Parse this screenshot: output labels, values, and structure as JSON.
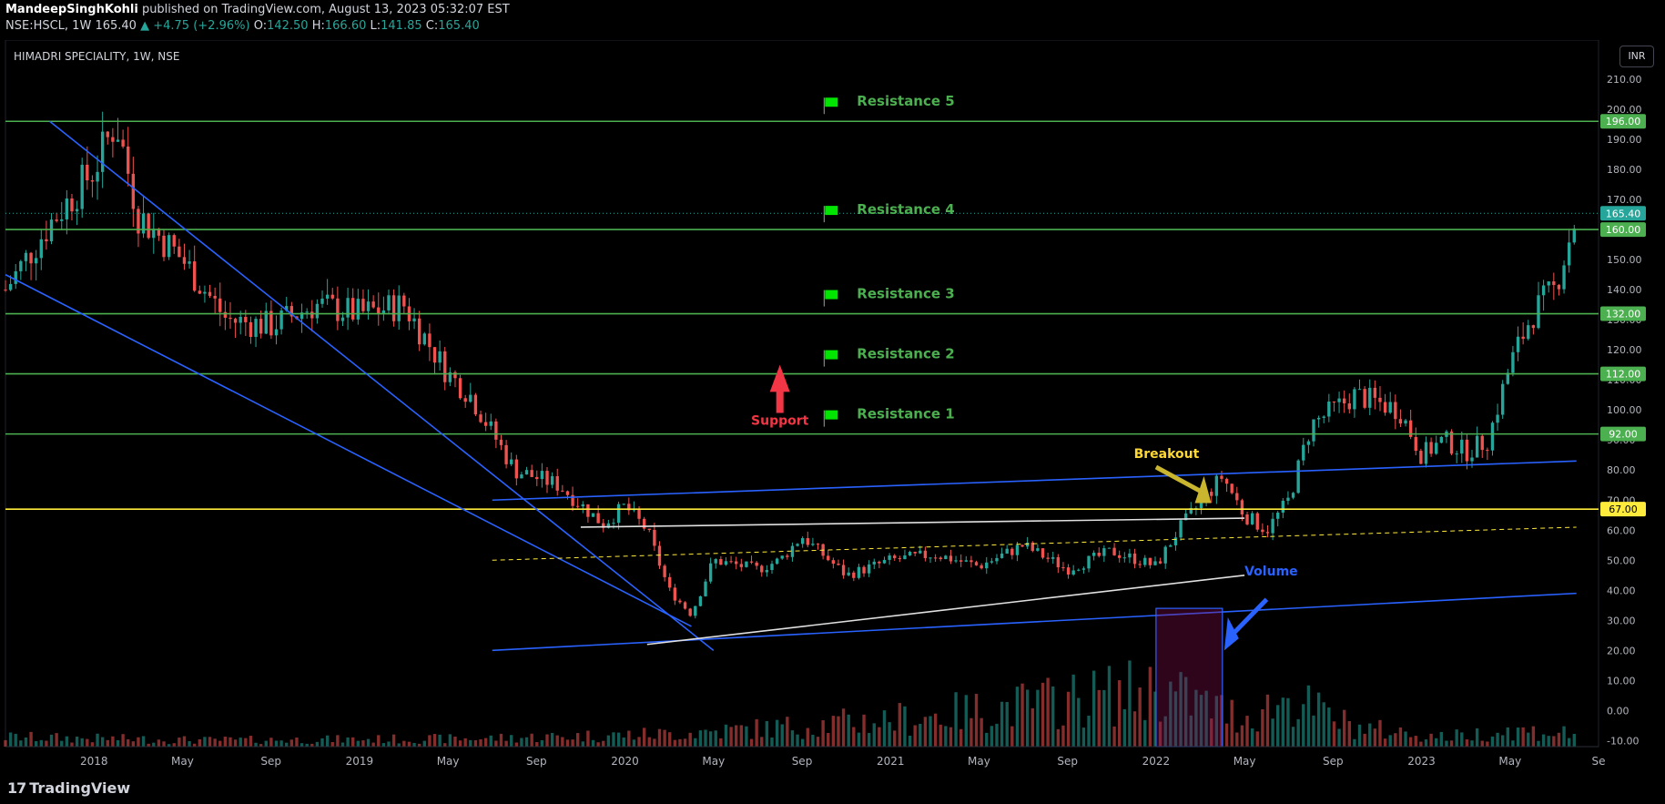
{
  "header": {
    "publisher": "MandeepSinghKohli",
    "published_text": "published on TradingView.com, August 13, 2023 05:32:07 EST",
    "symbol": "NSE:HSCL, 1W",
    "last": "165.40",
    "change": "+4.75 (+2.96%)",
    "open_label": "O:",
    "open": "142.50",
    "high_label": "H:",
    "high": "166.60",
    "low_label": "L:",
    "low": "141.85",
    "close_label": "C:",
    "close": "165.40"
  },
  "legend_title": "HIMADRI SPECIALITY, 1W, NSE",
  "currency": "INR",
  "footer": {
    "brand": "TradingView"
  },
  "colors": {
    "resistance": "#4caf50",
    "flag": "#00e600",
    "support_line": "#ffeb3b",
    "channel": "#2962ff",
    "up": "#26a69a",
    "down": "#ef5350",
    "label_bg_green": "#4caf50",
    "label_bg_yellow": "#ffeb3b",
    "label_bg_last": "#26a69a"
  },
  "chart_data": {
    "type": "candlestick",
    "title": "HIMADRI SPECIALITY, 1W, NSE",
    "y_ticks": [
      210,
      200,
      190,
      180,
      170,
      160,
      150,
      140,
      130,
      120,
      110,
      100,
      90,
      80,
      70,
      60,
      50,
      40,
      30,
      20,
      10,
      0,
      -10
    ],
    "y_tick_labels": [
      "210.00",
      "200.00",
      "190.00",
      "180.00",
      "170.00",
      "160.00",
      "150.00",
      "140.00",
      "130.00",
      "120.00",
      "110.00",
      "100.00",
      "90.00",
      "80.00",
      "70.00",
      "60.00",
      "50.00",
      "40.00",
      "30.00",
      "20.00",
      "10.00",
      "0.00",
      "-10.00"
    ],
    "ylim": [
      -12,
      220
    ],
    "x_ticks": [
      "2018",
      "May",
      "Sep",
      "2019",
      "May",
      "Sep",
      "2020",
      "May",
      "Sep",
      "2021",
      "May",
      "Sep",
      "2022",
      "May",
      "Sep",
      "2023",
      "May",
      "Se"
    ],
    "x_tick_dates": [
      "2018-01",
      "2018-05",
      "2018-09",
      "2019-01",
      "2019-05",
      "2019-09",
      "2020-01",
      "2020-05",
      "2020-09",
      "2021-01",
      "2021-05",
      "2021-09",
      "2022-01",
      "2022-05",
      "2022-09",
      "2023-01",
      "2023-05",
      "2023-09"
    ],
    "xlim": [
      "2017-09",
      "2023-09"
    ],
    "horizontal_levels": [
      {
        "name": "Resistance 5",
        "value": 196,
        "label": "196.00",
        "color": "#4caf50"
      },
      {
        "name": "Resistance 4",
        "value": 160,
        "label": "160.00",
        "color": "#4caf50"
      },
      {
        "name": "Resistance 3",
        "value": 132,
        "label": "132.00",
        "color": "#4caf50"
      },
      {
        "name": "Resistance 2",
        "value": 112,
        "label": "112.00",
        "color": "#4caf50"
      },
      {
        "name": "Resistance 1",
        "value": 92,
        "label": "92.00",
        "color": "#4caf50"
      },
      {
        "name": "",
        "value": 67,
        "label": "67.00",
        "color": "#ffeb3b"
      }
    ],
    "last_price": {
      "value": 165.4,
      "label": "165.40"
    },
    "annotations": {
      "resistance_labels": [
        "Resistance 5",
        "Resistance 4",
        "Resistance 3",
        "Resistance 2",
        "Resistance 1"
      ],
      "support": "Support",
      "breakout": "Breakout",
      "volume": "Volume"
    },
    "price_path": [
      [
        "2017-09",
        140
      ],
      [
        "2017-11",
        162
      ],
      [
        "2018-01",
        180
      ],
      [
        "2018-02",
        196
      ],
      [
        "2018-03",
        165
      ],
      [
        "2018-05",
        150
      ],
      [
        "2018-07",
        130
      ],
      [
        "2018-09",
        128
      ],
      [
        "2018-11",
        135
      ],
      [
        "2019-01",
        132
      ],
      [
        "2019-03",
        135
      ],
      [
        "2019-05",
        112
      ],
      [
        "2019-06",
        105
      ],
      [
        "2019-08",
        80
      ],
      [
        "2019-10",
        75
      ],
      [
        "2019-12",
        62
      ],
      [
        "2020-01",
        68
      ],
      [
        "2020-02",
        60
      ],
      [
        "2020-03",
        40
      ],
      [
        "2020-04",
        32
      ],
      [
        "2020-05",
        50
      ],
      [
        "2020-07",
        47
      ],
      [
        "2020-08",
        50
      ],
      [
        "2020-09",
        58
      ],
      [
        "2020-11",
        45
      ],
      [
        "2021-01",
        50
      ],
      [
        "2021-03",
        52
      ],
      [
        "2021-05",
        48
      ],
      [
        "2021-07",
        55
      ],
      [
        "2021-09",
        47
      ],
      [
        "2021-11",
        53
      ],
      [
        "2022-01",
        48
      ],
      [
        "2022-02",
        60
      ],
      [
        "2022-04",
        78
      ],
      [
        "2022-05",
        65
      ],
      [
        "2022-06",
        60
      ],
      [
        "2022-07",
        70
      ],
      [
        "2022-08",
        95
      ],
      [
        "2022-10",
        105
      ],
      [
        "2022-12",
        100
      ],
      [
        "2023-01",
        85
      ],
      [
        "2023-02",
        90
      ],
      [
        "2023-03",
        86
      ],
      [
        "2023-04",
        90
      ],
      [
        "2023-05",
        115
      ],
      [
        "2023-06",
        132
      ],
      [
        "2023-07",
        140
      ],
      [
        "2023-08",
        165
      ]
    ],
    "volume_regimes": [
      [
        "2017-09",
        3
      ],
      [
        "2018-06",
        2
      ],
      [
        "2019-06",
        2.5
      ],
      [
        "2020-03",
        4
      ],
      [
        "2020-08",
        6
      ],
      [
        "2021-02",
        9
      ],
      [
        "2021-06",
        12
      ],
      [
        "2022-01",
        18
      ],
      [
        "2022-05",
        9
      ],
      [
        "2022-07",
        15
      ],
      [
        "2022-10",
        6
      ],
      [
        "2023-02",
        3
      ],
      [
        "2023-05",
        5
      ],
      [
        "2023-08",
        4
      ]
    ]
  }
}
